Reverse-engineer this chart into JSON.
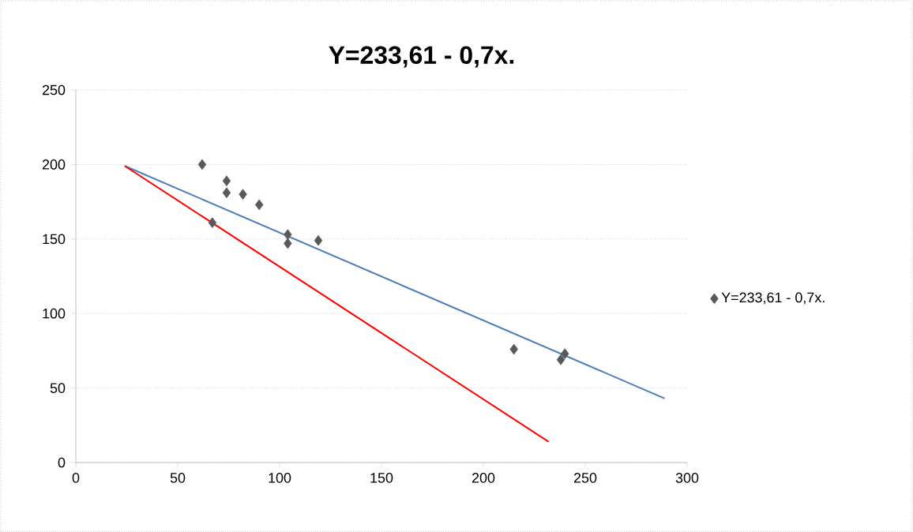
{
  "chart_data": {
    "type": "scatter",
    "title": "Y=233,61 - 0,7x.",
    "xlim": [
      0,
      300
    ],
    "xticks": [
      0,
      50,
      100,
      150,
      200,
      250,
      300
    ],
    "ylim": [
      0,
      250
    ],
    "yticks": [
      0,
      50,
      100,
      150,
      200,
      250
    ],
    "grid": "y",
    "legend": "right",
    "series": [
      {
        "name": "Y=233,61 - 0,7x.",
        "color": "#595959",
        "marker": "diamond",
        "x": [
          62,
          67,
          74,
          74,
          82,
          90,
          104,
          104,
          119,
          215,
          238,
          240
        ],
        "values": [
          200,
          161,
          189,
          181,
          180,
          173,
          153,
          147,
          149,
          76,
          69,
          73
        ]
      },
      {
        "type": "line",
        "color": "#4a7ebb",
        "marker": "none",
        "x": [
          24,
          289
        ],
        "values": [
          199,
          43
        ]
      },
      {
        "type": "line",
        "color": "#ff0000",
        "marker": "none",
        "x": [
          24,
          232
        ],
        "values": [
          199,
          14
        ]
      }
    ]
  }
}
